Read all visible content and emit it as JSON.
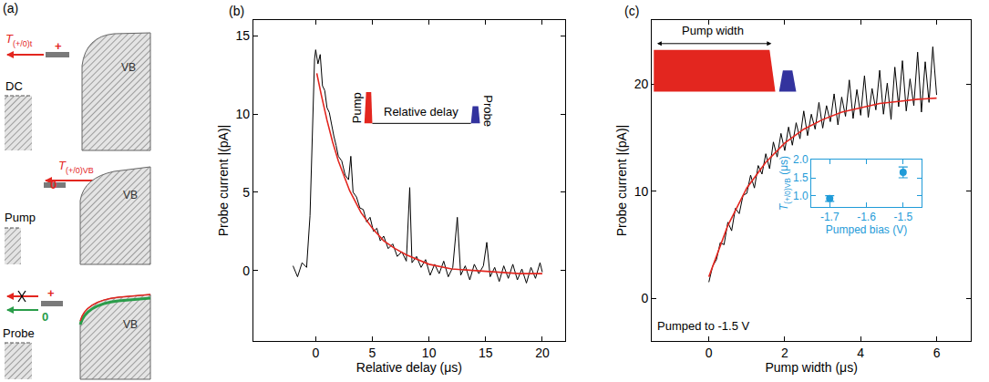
{
  "panel_a": {
    "label": "(a)",
    "rows": [
      {
        "name": "DC",
        "band": "VB",
        "rate": {
          "symbol": "T",
          "subscript": "(+/0)t"
        },
        "state": "+"
      },
      {
        "name": "Pump",
        "band": "VB",
        "rate": {
          "symbol": "T",
          "subscript": "(+/0)VB"
        },
        "state": "0"
      },
      {
        "name": "Probe",
        "band": "VB",
        "state": "+",
        "alt_state": "0"
      }
    ]
  },
  "chart_data": [
    {
      "panel": "(b)",
      "type": "line",
      "xlabel": "Relative delay (μs)",
      "ylabel": "Probe current |(pA)|",
      "xlim": [
        -5.5,
        22
      ],
      "ylim": [
        -4.5,
        16
      ],
      "xticks": [
        0,
        5,
        10,
        15,
        20
      ],
      "yticks": [
        0,
        5,
        10,
        15
      ],
      "grid": false,
      "annotations": [
        "Pump",
        "Relative delay",
        "Probe"
      ],
      "series": [
        {
          "color": "#000000",
          "x": [
            -2,
            -1.6,
            -1.2,
            -0.8,
            -0.5,
            -0.3,
            -0.1,
            0,
            0.2,
            0.4,
            0.6,
            0.8,
            1.0,
            1.2,
            1.4,
            1.6,
            1.8,
            2.0,
            2.3,
            2.6,
            2.9,
            3.1,
            3.3,
            3.6,
            3.9,
            4.2,
            4.5,
            4.8,
            5.1,
            5.4,
            5.7,
            6.0,
            6.4,
            6.8,
            7.2,
            7.6,
            8.0,
            8.3,
            8.5,
            8.9,
            9.3,
            9.7,
            10.1,
            10.5,
            10.9,
            11.3,
            11.7,
            12.1,
            12.5,
            12.8,
            13.2,
            13.6,
            14.0,
            14.4,
            14.8,
            15.1,
            15.4,
            15.8,
            16.2,
            16.6,
            17.0,
            17.4,
            17.8,
            18.2,
            18.6,
            19.0,
            19.4,
            19.8,
            20
          ],
          "values": [
            0.3,
            -0.4,
            0.5,
            0.2,
            3.5,
            9,
            13.5,
            14.1,
            13.2,
            13.8,
            11.8,
            11.5,
            10.4,
            10.1,
            9.3,
            8.6,
            8.0,
            7.3,
            7.0,
            6.1,
            5.8,
            7.3,
            5.0,
            4.7,
            4.0,
            3.9,
            3.1,
            3.4,
            2.5,
            2.7,
            1.9,
            2.2,
            1.4,
            1.7,
            0.9,
            1.2,
            0.6,
            5.3,
            0.5,
            0.9,
            0.2,
            0.7,
            -0.3,
            0.4,
            -0.2,
            0.6,
            -0.4,
            0.2,
            3.4,
            -0.3,
            0.3,
            -0.6,
            0.4,
            -0.2,
            0.3,
            1.8,
            -0.4,
            0.2,
            -0.7,
            0.3,
            -0.5,
            0.4,
            -0.6,
            0.1,
            -0.8,
            0.2,
            -0.5,
            0.5,
            -0.1
          ]
        },
        {
          "color": "#e3261f",
          "x": [
            0.1,
            0.2,
            0.5,
            1,
            1.5,
            2,
            2.5,
            3,
            4,
            5,
            6,
            7,
            8,
            10,
            12,
            14,
            16,
            18,
            20
          ],
          "values": [
            12.6,
            12.2,
            11.2,
            9.6,
            8.2,
            7.0,
            6.0,
            5.1,
            3.7,
            2.7,
            1.9,
            1.4,
            1.0,
            0.4,
            0.1,
            0.0,
            -0.1,
            -0.2,
            -0.2
          ]
        }
      ]
    },
    {
      "panel": "(c)",
      "type": "line",
      "xlabel": "Pump width (μs)",
      "ylabel": "Probe current |(pA)|",
      "xlim": [
        -1.5,
        6.9
      ],
      "ylim": [
        -4,
        26
      ],
      "xticks": [
        0,
        2,
        4,
        6
      ],
      "yticks": [
        0,
        10,
        20
      ],
      "grid": false,
      "annotations": [
        "Pump width",
        "Pumped to -1.5 V"
      ],
      "series": [
        {
          "color": "#000000",
          "x": [
            0,
            0.1,
            0.2,
            0.3,
            0.4,
            0.5,
            0.6,
            0.7,
            0.8,
            0.9,
            1.0,
            1.1,
            1.2,
            1.3,
            1.4,
            1.5,
            1.6,
            1.7,
            1.8,
            1.9,
            2.0,
            2.1,
            2.2,
            2.3,
            2.4,
            2.5,
            2.6,
            2.7,
            2.8,
            2.9,
            3.0,
            3.1,
            3.2,
            3.3,
            3.4,
            3.5,
            3.6,
            3.7,
            3.8,
            3.9,
            4.0,
            4.1,
            4.2,
            4.3,
            4.4,
            4.5,
            4.6,
            4.7,
            4.8,
            4.9,
            5.0,
            5.1,
            5.2,
            5.3,
            5.4,
            5.5,
            5.6,
            5.7,
            5.8,
            5.9,
            6.0
          ],
          "values": [
            1.5,
            3.0,
            3.6,
            5.2,
            5.0,
            7.1,
            6.3,
            8.4,
            7.9,
            9.6,
            9.8,
            11.5,
            10.3,
            12.4,
            11.6,
            13.5,
            12.1,
            14.6,
            13.2,
            15.4,
            13.8,
            16.0,
            14.3,
            16.4,
            14.9,
            17.5,
            15.2,
            17.2,
            15.8,
            18.3,
            15.9,
            18.0,
            16.5,
            19.1,
            16.2,
            18.8,
            17.0,
            20.4,
            16.8,
            19.5,
            17.1,
            20.8,
            16.9,
            19.6,
            17.6,
            21.3,
            17.2,
            20.1,
            16.7,
            21.6,
            17.9,
            22.2,
            17.5,
            20.5,
            18.0,
            23.0,
            17.4,
            22.1,
            18.3,
            23.5,
            19.0
          ]
        },
        {
          "color": "#e3261f",
          "x": [
            0,
            0.5,
            1,
            1.5,
            2,
            2.5,
            3,
            3.5,
            4,
            4.5,
            5,
            5.5,
            6
          ],
          "values": [
            2.0,
            6.8,
            10.3,
            12.7,
            14.5,
            15.8,
            16.7,
            17.4,
            17.8,
            18.2,
            18.4,
            18.6,
            18.7
          ]
        }
      ],
      "inset": {
        "type": "scatter",
        "xlabel": "Pumped bias (V)",
        "ylabel": {
          "symbol": "T",
          "subscript": "(+/0)VB",
          "unit": "(μs)"
        },
        "xlim": [
          -1.75,
          -1.45
        ],
        "ylim": [
          0.7,
          2.0
        ],
        "xticks": [
          -1.7,
          -1.6,
          -1.5
        ],
        "yticks": [
          {
            "value": 1,
            "label": "1.0"
          },
          {
            "value": 1.5,
            "label": "1.5"
          },
          {
            "value": 2,
            "label": "2.0"
          }
        ],
        "grid": false,
        "series": [
          {
            "color": "#1f9bd8",
            "marker": "circle",
            "x": [
              -1.7,
              -1.5
            ],
            "values": [
              0.93,
              1.65
            ],
            "errors": [
              0.08,
              0.15
            ]
          }
        ]
      }
    }
  ]
}
